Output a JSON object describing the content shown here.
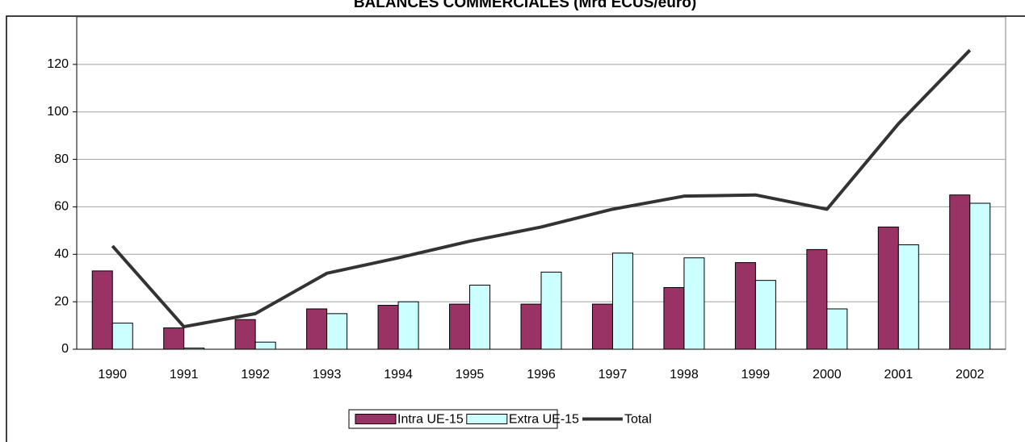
{
  "chart_data": {
    "type": "bar_line",
    "title": "BALANCES COMMERCIALES (Mrd ECUS/euro)",
    "categories": [
      "1990",
      "1991",
      "1992",
      "1993",
      "1994",
      "1995",
      "1996",
      "1997",
      "1998",
      "1999",
      "2000",
      "2001",
      "2002"
    ],
    "series": [
      {
        "name": "Intra UE-15",
        "type": "bar",
        "color": "#993366",
        "values": [
          33,
          9,
          12.5,
          17,
          18.5,
          19,
          19,
          19,
          26,
          36.5,
          42,
          51.5,
          65
        ]
      },
      {
        "name": "Extra UE-15",
        "type": "bar",
        "color": "#ccffff",
        "values": [
          11,
          0.5,
          3,
          15,
          20,
          27,
          32.5,
          40.5,
          38.5,
          29,
          17,
          44,
          61.5
        ]
      },
      {
        "name": "Total",
        "type": "line",
        "color": "#333333",
        "values": [
          43.5,
          9.5,
          15,
          32,
          38.5,
          45.5,
          51.5,
          59,
          64.5,
          65,
          59,
          95,
          126
        ]
      }
    ],
    "ylim": [
      0,
      140
    ],
    "yticks": [
      0,
      20,
      40,
      60,
      80,
      100,
      120
    ],
    "grid": true,
    "legend": "bottom"
  }
}
